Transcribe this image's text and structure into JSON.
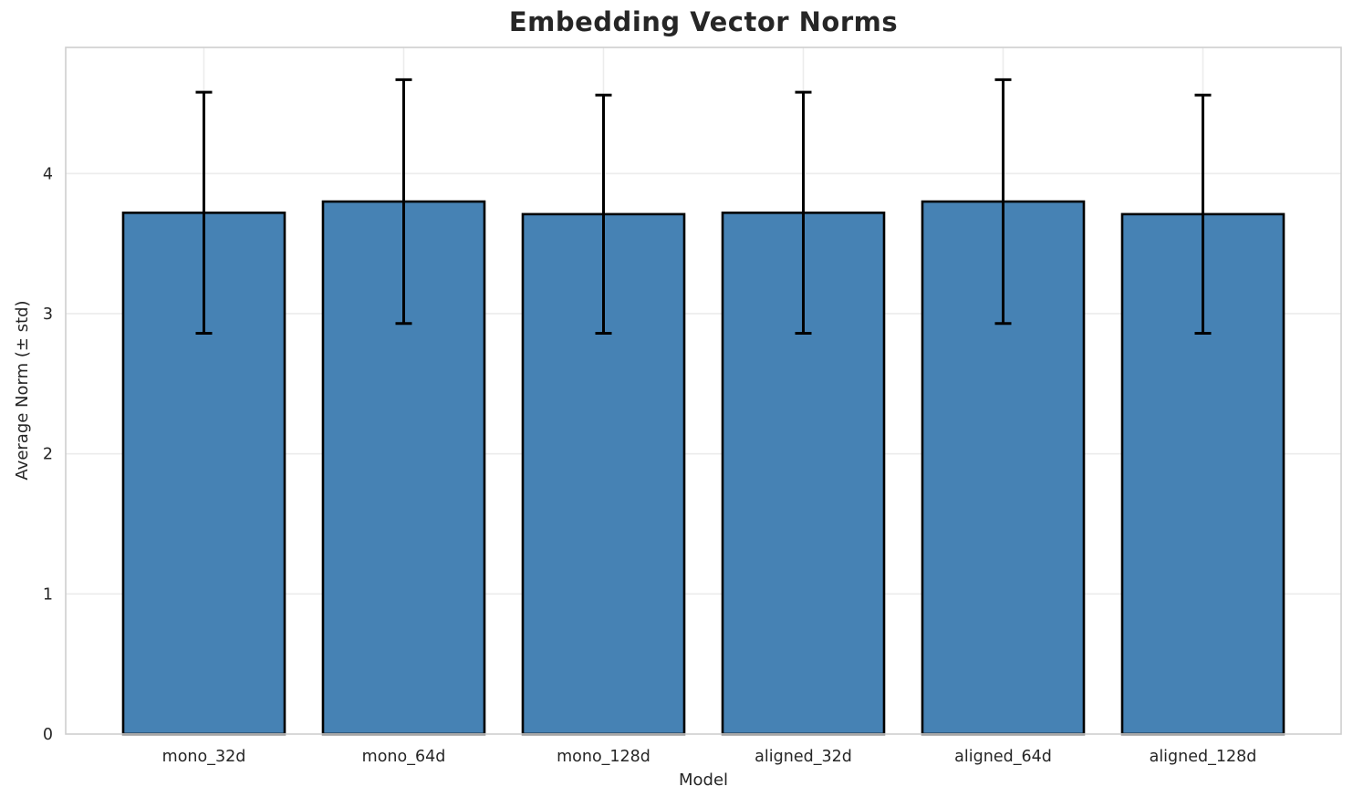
{
  "chart_data": {
    "type": "bar",
    "title": "Embedding Vector Norms",
    "xlabel": "Model",
    "ylabel": "Average Norm (± std)",
    "categories": [
      "mono_32d",
      "mono_64d",
      "mono_128d",
      "aligned_32d",
      "aligned_64d",
      "aligned_128d"
    ],
    "values": [
      3.72,
      3.8,
      3.71,
      3.72,
      3.8,
      3.71
    ],
    "errors": [
      0.86,
      0.87,
      0.85,
      0.86,
      0.87,
      0.85
    ],
    "yticks": [
      0,
      1,
      2,
      3,
      4
    ],
    "ylim": [
      0,
      4.9
    ],
    "grid": true,
    "legend": "none",
    "colors": {
      "bar_fill": "#4682b4",
      "bar_edge": "#000000",
      "error_bar": "#000000",
      "gridline": "#ececec",
      "spine": "#cfcfcf",
      "text": "#262626",
      "background": "#ffffff"
    }
  }
}
